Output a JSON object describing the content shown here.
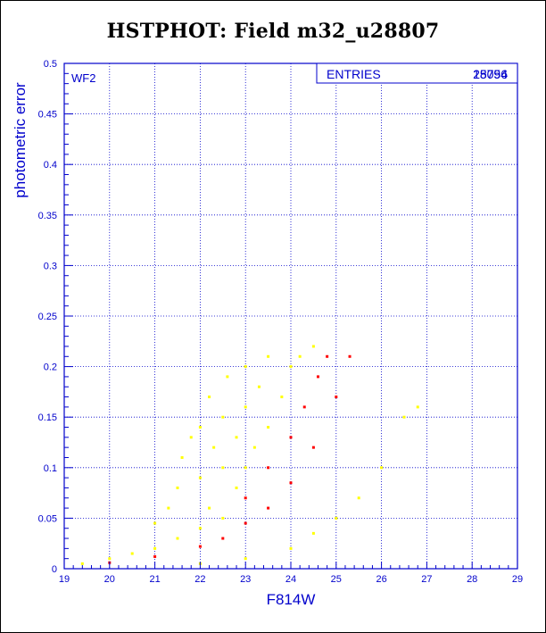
{
  "colors": {
    "accent": "#0000cc",
    "series_all": "#ffff00",
    "series_selected": "#ff0000"
  },
  "chart_data": {
    "type": "scatter",
    "title": "HSTPHOT: Field m32_u28807",
    "panel_label": "WF2",
    "xlabel": "F814W",
    "ylabel": "photometric error",
    "xlim": [
      19,
      29
    ],
    "ylim": [
      0,
      0.5
    ],
    "x_ticks": [
      "19",
      "20",
      "21",
      "22",
      "23",
      "24",
      "25",
      "26",
      "27",
      "28",
      "29"
    ],
    "y_ticks": [
      "0",
      "0.05",
      "0.1",
      "0.15",
      "0.2",
      "0.25",
      "0.3",
      "0.35",
      "0.4",
      "0.45",
      "0.5"
    ],
    "grid": true,
    "stats_box": {
      "label": "ENTRIES",
      "value_front": "18796",
      "value_back": "25054"
    },
    "series": [
      {
        "color": "#ffff00",
        "points": [
          [
            19.4,
            0.005
          ],
          [
            20.0,
            0.01
          ],
          [
            20.5,
            0.015
          ],
          [
            21.0,
            0.02
          ],
          [
            21.0,
            0.045
          ],
          [
            21.3,
            0.06
          ],
          [
            21.5,
            0.03
          ],
          [
            21.5,
            0.08
          ],
          [
            21.6,
            0.11
          ],
          [
            21.8,
            0.13
          ],
          [
            22.0,
            0.04
          ],
          [
            22.0,
            0.09
          ],
          [
            22.0,
            0.14
          ],
          [
            22.2,
            0.06
          ],
          [
            22.2,
            0.17
          ],
          [
            22.3,
            0.12
          ],
          [
            22.5,
            0.05
          ],
          [
            22.5,
            0.1
          ],
          [
            22.5,
            0.15
          ],
          [
            22.6,
            0.19
          ],
          [
            22.8,
            0.08
          ],
          [
            22.8,
            0.13
          ],
          [
            23.0,
            0.1
          ],
          [
            23.0,
            0.16
          ],
          [
            23.0,
            0.2
          ],
          [
            23.2,
            0.12
          ],
          [
            23.3,
            0.18
          ],
          [
            23.5,
            0.14
          ],
          [
            23.5,
            0.21
          ],
          [
            23.8,
            0.17
          ],
          [
            24.0,
            0.2
          ],
          [
            24.2,
            0.21
          ],
          [
            24.5,
            0.22
          ],
          [
            22.0,
            0.005
          ],
          [
            23.0,
            0.01
          ],
          [
            24.0,
            0.02
          ],
          [
            24.5,
            0.035
          ],
          [
            25.0,
            0.05
          ],
          [
            25.5,
            0.07
          ],
          [
            26.0,
            0.1
          ],
          [
            26.5,
            0.15
          ],
          [
            26.8,
            0.16
          ]
        ]
      },
      {
        "color": "#ff0000",
        "points": [
          [
            20.0,
            0.006
          ],
          [
            21.0,
            0.012
          ],
          [
            22.0,
            0.022
          ],
          [
            22.5,
            0.03
          ],
          [
            23.0,
            0.045
          ],
          [
            23.5,
            0.06
          ],
          [
            24.0,
            0.085
          ],
          [
            24.5,
            0.12
          ],
          [
            25.0,
            0.17
          ],
          [
            25.3,
            0.21
          ],
          [
            23.0,
            0.07
          ],
          [
            23.5,
            0.1
          ],
          [
            24.0,
            0.13
          ],
          [
            24.3,
            0.16
          ],
          [
            24.6,
            0.19
          ],
          [
            24.8,
            0.21
          ]
        ]
      }
    ]
  }
}
